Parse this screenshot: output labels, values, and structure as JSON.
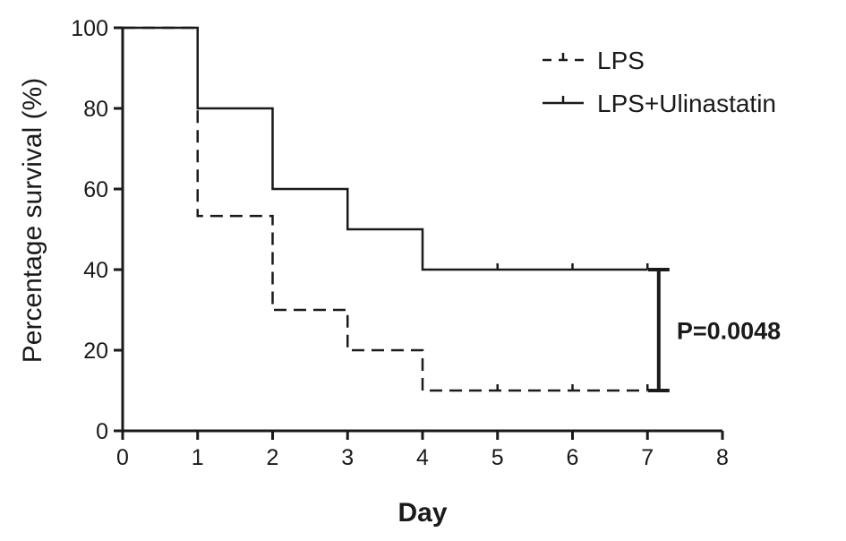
{
  "chart_data": {
    "type": "line",
    "subtype": "kaplan-meier step",
    "title": "",
    "xlabel": "Day",
    "ylabel": "Percentage survival (%)",
    "xlim": [
      0,
      8
    ],
    "ylim": [
      0,
      100
    ],
    "x_ticks": [
      0,
      1,
      2,
      3,
      4,
      5,
      6,
      7,
      8
    ],
    "y_ticks": [
      0,
      20,
      40,
      60,
      80,
      100
    ],
    "grid": false,
    "legend_position": "top-right",
    "series": [
      {
        "name": "LPS",
        "style": "dashed",
        "color": "#1a1a1a",
        "steps": [
          {
            "x": 0,
            "y": 100
          },
          {
            "x": 1,
            "y": 53.3
          },
          {
            "x": 2,
            "y": 30
          },
          {
            "x": 3,
            "y": 20
          },
          {
            "x": 4,
            "y": 10
          }
        ],
        "end_x": 7,
        "censor_ticks": [
          5,
          6,
          7
        ]
      },
      {
        "name": "LPS+Ulinastatin",
        "style": "solid",
        "color": "#1a1a1a",
        "steps": [
          {
            "x": 0,
            "y": 100
          },
          {
            "x": 1,
            "y": 80
          },
          {
            "x": 2,
            "y": 60
          },
          {
            "x": 3,
            "y": 50
          },
          {
            "x": 4,
            "y": 40
          }
        ],
        "end_x": 7,
        "censor_ticks": [
          5,
          6,
          7
        ]
      }
    ],
    "annotations": [
      {
        "type": "bracket",
        "x": 7.15,
        "y_from": 10,
        "y_to": 40,
        "label": "P=0.0048"
      }
    ]
  }
}
